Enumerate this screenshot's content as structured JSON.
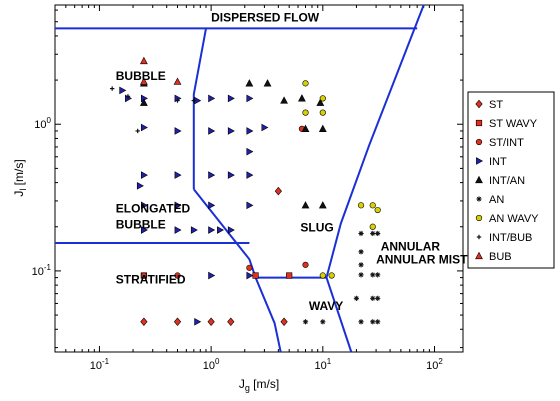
{
  "chart_data": {
    "type": "scatter",
    "title": "",
    "xlabel": "J",
    "xlabel_sub": "g",
    "xlabel_unit": " [m/s]",
    "ylabel": "J",
    "ylabel_sub": "l",
    "ylabel_unit": " [m/s]",
    "xscale": "log",
    "yscale": "log",
    "xlim": [
      0.04,
      180
    ],
    "ylim": [
      0.028,
      6.5
    ],
    "x_ticks": [
      {
        "value": 0.1,
        "base": "10",
        "exp": "-1"
      },
      {
        "value": 1,
        "base": "10",
        "exp": "0"
      },
      {
        "value": 10,
        "base": "10",
        "exp": "1"
      },
      {
        "value": 100,
        "base": "10",
        "exp": "2"
      }
    ],
    "y_ticks": [
      {
        "value": 0.1,
        "base": "10",
        "exp": "-1"
      },
      {
        "value": 1,
        "base": "10",
        "exp": "0"
      }
    ],
    "grid": false,
    "legend_position": "right-outside",
    "region_labels": [
      {
        "text": "DISPERSED FLOW",
        "x": 1.0,
        "y": 5.0
      },
      {
        "text": "BUBBLE",
        "x": 0.14,
        "y": 2.0
      },
      {
        "text": "ELONGATED",
        "x": 0.14,
        "y": 0.25
      },
      {
        "text": "BUBBLE",
        "x": 0.14,
        "y": 0.195
      },
      {
        "text": "SLUG",
        "x": 6.3,
        "y": 0.185
      },
      {
        "text": "ANNULAR",
        "x": 33,
        "y": 0.138
      },
      {
        "text": "ANNULAR MIST",
        "x": 30,
        "y": 0.112
      },
      {
        "text": "STRATIFIED",
        "x": 0.14,
        "y": 0.082
      },
      {
        "text": "WAVY",
        "x": 7.5,
        "y": 0.054
      }
    ],
    "boundaries": [
      {
        "name": "dispersed",
        "points": [
          [
            0.04,
            4.5
          ],
          [
            70,
            4.5
          ]
        ]
      },
      {
        "name": "bubble-slug",
        "points": [
          [
            0.9,
            4.5
          ],
          [
            0.7,
            1.6
          ],
          [
            0.7,
            0.36
          ]
        ]
      },
      {
        "name": "elongated-stratified",
        "points": [
          [
            0.04,
            0.155
          ],
          [
            2.2,
            0.155
          ]
        ]
      },
      {
        "name": "slug-lower",
        "points": [
          [
            0.7,
            0.36
          ],
          [
            2.2,
            0.12
          ],
          [
            2.5,
            0.09
          ],
          [
            10.8,
            0.09
          ]
        ]
      },
      {
        "name": "wavy-left",
        "points": [
          [
            2.5,
            0.09
          ],
          [
            3.7,
            0.044
          ],
          [
            4.2,
            0.028
          ]
        ]
      },
      {
        "name": "slug-annular",
        "points": [
          [
            10.8,
            0.09
          ],
          [
            14.5,
            0.21
          ],
          [
            26,
            0.72
          ],
          [
            80,
            6.5
          ]
        ]
      },
      {
        "name": "wavy-annular",
        "points": [
          [
            10.8,
            0.09
          ],
          [
            18,
            0.028
          ]
        ]
      }
    ],
    "series": [
      {
        "name": "ST",
        "marker": "diamond",
        "color": "#e03020",
        "points": [
          [
            0.25,
            0.045
          ],
          [
            0.5,
            0.045
          ],
          [
            1.0,
            0.045
          ],
          [
            1.5,
            0.045
          ],
          [
            4.5,
            0.045
          ],
          [
            4.0,
            0.35
          ]
        ]
      },
      {
        "name": "ST WAVY",
        "marker": "square",
        "color": "#e03020",
        "points": [
          [
            0.25,
            0.093
          ],
          [
            2.5,
            0.093
          ],
          [
            5.0,
            0.093
          ]
        ]
      },
      {
        "name": "ST/INT",
        "marker": "circle",
        "color": "#e03020",
        "points": [
          [
            0.25,
            0.093
          ],
          [
            0.5,
            0.093
          ],
          [
            2.2,
            0.105
          ],
          [
            7.0,
            0.11
          ],
          [
            6.5,
            0.93
          ]
        ]
      },
      {
        "name": "INT",
        "marker": "tri-right",
        "color": "#2020b0",
        "points": [
          [
            0.16,
            1.7
          ],
          [
            0.18,
            1.5
          ],
          [
            0.25,
            1.5
          ],
          [
            0.5,
            1.5
          ],
          [
            0.75,
            1.45
          ],
          [
            1.0,
            1.5
          ],
          [
            1.5,
            1.5
          ],
          [
            2.2,
            1.5
          ],
          [
            0.25,
            0.95
          ],
          [
            0.5,
            0.9
          ],
          [
            1.0,
            0.9
          ],
          [
            1.5,
            0.9
          ],
          [
            2.2,
            0.9
          ],
          [
            3.0,
            0.95
          ],
          [
            2.2,
            0.65
          ],
          [
            0.25,
            0.45
          ],
          [
            0.5,
            0.45
          ],
          [
            1.0,
            0.45
          ],
          [
            1.5,
            0.45
          ],
          [
            2.2,
            0.45
          ],
          [
            0.23,
            0.38
          ],
          [
            0.25,
            0.28
          ],
          [
            0.5,
            0.28
          ],
          [
            1.0,
            0.28
          ],
          [
            2.2,
            0.28
          ],
          [
            0.25,
            0.19
          ],
          [
            0.5,
            0.19
          ],
          [
            1.0,
            0.19
          ],
          [
            1.2,
            0.19
          ],
          [
            1.5,
            0.19
          ],
          [
            0.7,
            0.19
          ],
          [
            1.0,
            0.093
          ],
          [
            2.2,
            0.093
          ],
          [
            0.75,
            0.045
          ]
        ]
      },
      {
        "name": "INT/AN",
        "marker": "triangle",
        "color": "#111111",
        "points": [
          [
            0.25,
            1.9
          ],
          [
            0.25,
            1.4
          ],
          [
            2.2,
            1.9
          ],
          [
            3.2,
            1.9
          ],
          [
            4.5,
            1.45
          ],
          [
            6.5,
            1.5
          ],
          [
            9.5,
            1.4
          ],
          [
            7.0,
            0.93
          ],
          [
            10.0,
            0.93
          ],
          [
            7.0,
            0.28
          ],
          [
            10.0,
            0.28
          ]
        ]
      },
      {
        "name": "AN",
        "marker": "star",
        "color": "#111111",
        "points": [
          [
            7.0,
            0.045
          ],
          [
            10.0,
            0.045
          ],
          [
            22,
            0.045
          ],
          [
            28,
            0.045
          ],
          [
            31,
            0.045
          ],
          [
            20,
            0.065
          ],
          [
            28,
            0.065
          ],
          [
            31,
            0.065
          ],
          [
            22,
            0.094
          ],
          [
            28,
            0.094
          ],
          [
            31,
            0.094
          ],
          [
            22,
            0.11
          ],
          [
            22,
            0.135
          ],
          [
            22,
            0.18
          ],
          [
            28,
            0.18
          ],
          [
            31,
            0.18
          ]
        ]
      },
      {
        "name": "AN WAVY",
        "marker": "circle",
        "color": "#d8d000",
        "points": [
          [
            7.0,
            1.9
          ],
          [
            10.0,
            1.5
          ],
          [
            7.0,
            1.2
          ],
          [
            10.0,
            1.2
          ],
          [
            22,
            0.28
          ],
          [
            28,
            0.28
          ],
          [
            31,
            0.26
          ],
          [
            28,
            0.2
          ],
          [
            10.0,
            0.093
          ],
          [
            12.0,
            0.093
          ]
        ]
      },
      {
        "name": "INT/BUB",
        "marker": "plus",
        "color": "#111111",
        "points": [
          [
            0.13,
            1.75
          ],
          [
            0.18,
            1.55
          ],
          [
            0.5,
            1.45
          ],
          [
            0.7,
            1.45
          ],
          [
            0.22,
            0.9
          ]
        ]
      },
      {
        "name": "BUB",
        "marker": "triangle",
        "color": "#e03020",
        "points": [
          [
            0.25,
            2.7
          ],
          [
            0.5,
            1.95
          ],
          [
            0.25,
            1.95
          ]
        ]
      }
    ]
  }
}
